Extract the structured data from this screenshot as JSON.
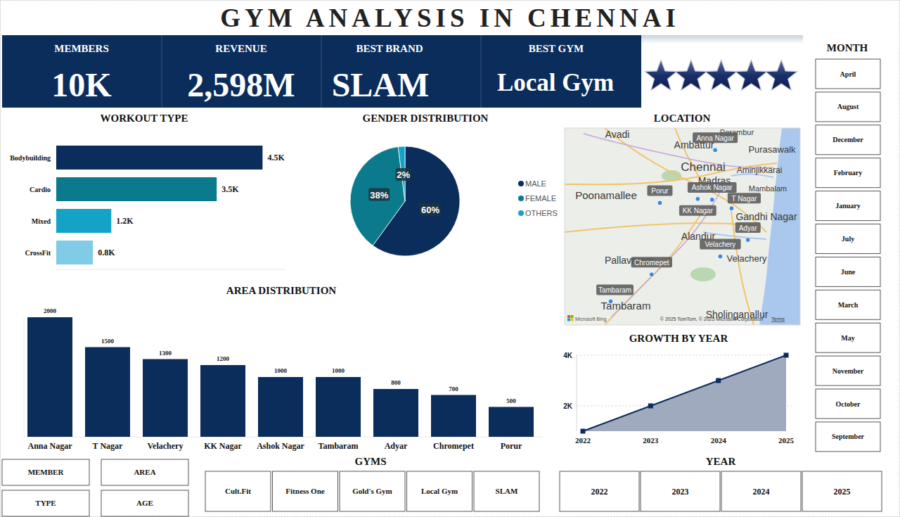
{
  "dashboard": {
    "title": "GYM ANALYSIS IN CHENNAI",
    "kpis": [
      {
        "label": "MEMBERS",
        "value": "10K"
      },
      {
        "label": "REVENUE",
        "value": "2,598M"
      },
      {
        "label": "BEST BRAND",
        "value": "SLAM"
      },
      {
        "label": "BEST GYM",
        "value": "Local Gym"
      }
    ],
    "rating": 5,
    "month_slicer": {
      "title": "MONTH",
      "items": [
        "April",
        "August",
        "December",
        "February",
        "January",
        "July",
        "June",
        "March",
        "May",
        "November",
        "October",
        "September"
      ]
    },
    "field_buttons": [
      "MEMBER",
      "AREA",
      "TYPE",
      "AGE"
    ],
    "gym_slicer": {
      "title": "GYMS",
      "items": [
        "Cult.Fit",
        "Fitness One",
        "Gold's Gym",
        "Local Gym",
        "SLAM"
      ]
    },
    "year_slicer": {
      "title": "YEAR",
      "items": [
        "2022",
        "2023",
        "2024",
        "2025"
      ]
    }
  },
  "chart_data": [
    {
      "type": "bar",
      "title": "WORKOUT TYPE",
      "orientation": "horizontal",
      "categories": [
        "Bodybuilding",
        "Cardio",
        "Mixed",
        "CrossFit"
      ],
      "values": [
        4500,
        3500,
        1200,
        800
      ],
      "value_labels": [
        "4.5K",
        "3.5K",
        "1.2K",
        "0.8K"
      ],
      "colors": [
        "#0b2d5b",
        "#0a7a8c",
        "#14a2c6",
        "#80cbe6"
      ],
      "xlim": [
        0,
        5000
      ],
      "data_labels": true,
      "tick_labels": "y"
    },
    {
      "type": "pie",
      "title": "GENDER DISTRIBUTION",
      "categories": [
        "MALE",
        "FEMALE",
        "OTHERS"
      ],
      "values": [
        60,
        38,
        2
      ],
      "value_labels": [
        "60%",
        "38%",
        "2%"
      ],
      "colors": [
        "#0b2d5b",
        "#0a7a8c",
        "#14a2c6"
      ],
      "data_labels": true,
      "legend": "right"
    },
    {
      "type": "map",
      "title": "LOCATION",
      "color": "#3b8ad9",
      "xlim": [
        80.07,
        80.3
      ],
      "ylim": [
        12.9,
        13.15
      ],
      "points": [
        {
          "label": "Anna Nagar",
          "lat": 13.122,
          "lon": 80.217
        },
        {
          "label": "Porur",
          "lat": 13.055,
          "lon": 80.163
        },
        {
          "label": "Ashok Nagar",
          "lat": 13.059,
          "lon": 80.214
        },
        {
          "label": "KK Nagar",
          "lat": 13.06,
          "lon": 80.2
        },
        {
          "label": "T Nagar",
          "lat": 13.048,
          "lon": 80.233
        },
        {
          "label": "Adyar",
          "lat": 13.008,
          "lon": 80.249
        },
        {
          "label": "Velachery",
          "lat": 12.987,
          "lon": 80.222
        },
        {
          "label": "Chromepet",
          "lat": 12.964,
          "lon": 80.155
        },
        {
          "label": "Tambaram",
          "lat": 12.93,
          "lon": 80.115
        }
      ],
      "place_labels": [
        "Avadi",
        "Ambattur",
        "Perambur",
        "Purasawalk",
        "Chennai",
        "Aminjikkarai",
        "Madras",
        "Mambalam",
        "Poonamallee",
        "Gandhi Nagar",
        "Alandur",
        "Pallavaram",
        "Velachery",
        "Tambaram",
        "Sholinganallur"
      ],
      "provider": "Microsoft Bing",
      "attribution": "© 2025 TomTom, © 2025 Microsoft Corporation",
      "terms": "Terms"
    },
    {
      "type": "bar",
      "title": "AREA DISTRIBUTION",
      "categories": [
        "Anna Nagar",
        "T Nagar",
        "Velachery",
        "KK Nagar",
        "Ashok Nagar",
        "Tambaram",
        "Adyar",
        "Chromepet",
        "Porur"
      ],
      "values": [
        2000,
        1500,
        1300,
        1200,
        1000,
        1000,
        800,
        700,
        500
      ],
      "color": "#0b2d5b",
      "ylim": [
        0,
        2000
      ],
      "data_labels": true,
      "tick_labels": "x"
    },
    {
      "type": "area",
      "title": "GROWTH BY YEAR",
      "categories": [
        "2022",
        "2023",
        "2024",
        "2025"
      ],
      "values": [
        1000,
        2000,
        3000,
        4000
      ],
      "color": "#0b2d5b",
      "marker": "square",
      "ylim": [
        1000,
        4000
      ],
      "yticks": [
        {
          "value": 2000,
          "label": "2K"
        },
        {
          "value": 4000,
          "label": "4K"
        }
      ],
      "grid": true
    }
  ]
}
